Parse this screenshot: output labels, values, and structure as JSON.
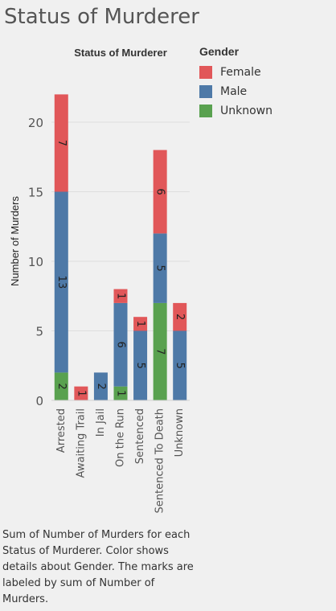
{
  "page": {
    "title": "Status of Murderer"
  },
  "legend": {
    "title": "Gender",
    "items": [
      {
        "label": "Female",
        "color": "#e15759"
      },
      {
        "label": "Male",
        "color": "#4e79a7"
      },
      {
        "label": "Unknown",
        "color": "#59a14f"
      }
    ]
  },
  "caption": "Sum of Number of Murders for each Status of Murderer.  Color shows details about Gender.  The marks are labeled by sum of Number of Murders.",
  "chart_data": {
    "type": "bar",
    "stacked": true,
    "title": "Status of Murderer",
    "xlabel": "",
    "ylabel": "Number of Murders",
    "categories": [
      "Arrested",
      "Awaiting Trail",
      "In Jail",
      "On the Run",
      "Sentenced",
      "Sentenced To Death",
      "Unknown"
    ],
    "series": [
      {
        "name": "Unknown",
        "color": "#59a14f",
        "values": [
          2,
          0,
          0,
          1,
          0,
          7,
          0
        ]
      },
      {
        "name": "Male",
        "color": "#4e79a7",
        "values": [
          13,
          0,
          2,
          6,
          5,
          5,
          5
        ]
      },
      {
        "name": "Female",
        "color": "#e15759",
        "values": [
          7,
          1,
          0,
          1,
          1,
          6,
          2
        ]
      }
    ],
    "yticks": [
      0,
      5,
      10,
      15,
      20
    ],
    "ylim": [
      0,
      23
    ],
    "grid": true,
    "legend_position": "right"
  }
}
